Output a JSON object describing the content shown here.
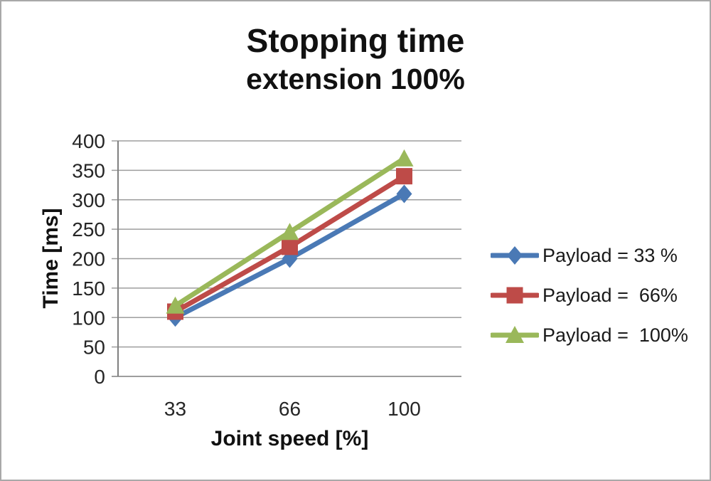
{
  "chart": {
    "title": "Stopping time",
    "subtitle": "extension 100%"
  },
  "chart_data": {
    "type": "line",
    "title": "Stopping time",
    "subtitle": "extension 100%",
    "xlabel": "Joint speed [%]",
    "ylabel": "Time [ms]",
    "categories": [
      33,
      66,
      100
    ],
    "x_tick_labels": [
      "33",
      "66",
      "100"
    ],
    "series": [
      {
        "name": "Payload = 33 %",
        "marker": "diamond",
        "color": "#4A79B5",
        "values": [
          100,
          200,
          310
        ]
      },
      {
        "name": "Payload =  66%",
        "marker": "square",
        "color": "#BE4B48",
        "values": [
          110,
          220,
          340
        ]
      },
      {
        "name": "Payload =  100%",
        "marker": "triangle",
        "color": "#9AB85A",
        "values": [
          120,
          245,
          370
        ]
      }
    ],
    "ylim": [
      0,
      400
    ],
    "ytick_step": 50,
    "grid": true,
    "legend_position": "right",
    "gridline_color": "#9e9e9e",
    "axis_line_color": "#808080",
    "tick_text_color": "#262626"
  }
}
